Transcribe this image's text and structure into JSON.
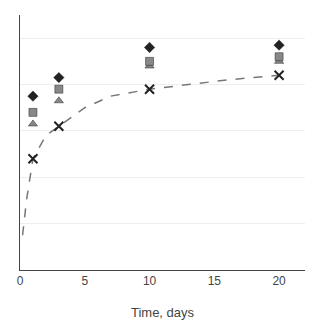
{
  "chart_data": {
    "type": "scatter",
    "xlabel": "Time, days",
    "xlim": [
      0,
      22
    ],
    "ylim": [
      0,
      110
    ],
    "xticks": [
      0,
      5,
      10,
      15,
      20
    ],
    "yticks": [
      0,
      20,
      40,
      60,
      80,
      100
    ],
    "grid": true,
    "tick_labels": "x",
    "series": [
      {
        "type": "line",
        "line_style": "dashed",
        "color": "#777777",
        "x": [
          0.2,
          0.5,
          1,
          2,
          3,
          5,
          7,
          10,
          13,
          16,
          20
        ],
        "values": [
          15,
          30,
          48,
          58,
          62,
          70,
          75,
          78,
          80,
          82,
          84
        ]
      },
      {
        "type": "scatter",
        "marker": "x",
        "color": "#222222",
        "x": [
          1,
          3,
          10,
          20
        ],
        "values": [
          48,
          62,
          78,
          84
        ]
      },
      {
        "type": "scatter",
        "marker": "triangle",
        "color": "#888888",
        "x": [
          1,
          3,
          10,
          20
        ],
        "values": [
          63,
          73,
          88,
          90
        ]
      },
      {
        "type": "scatter",
        "marker": "square",
        "color": "#888888",
        "x": [
          1,
          3,
          10,
          20
        ],
        "values": [
          68,
          78,
          90,
          92
        ]
      },
      {
        "type": "scatter",
        "marker": "diamond",
        "color": "#222222",
        "x": [
          1,
          3,
          10,
          20
        ],
        "values": [
          75,
          83,
          96,
          97
        ]
      }
    ]
  }
}
